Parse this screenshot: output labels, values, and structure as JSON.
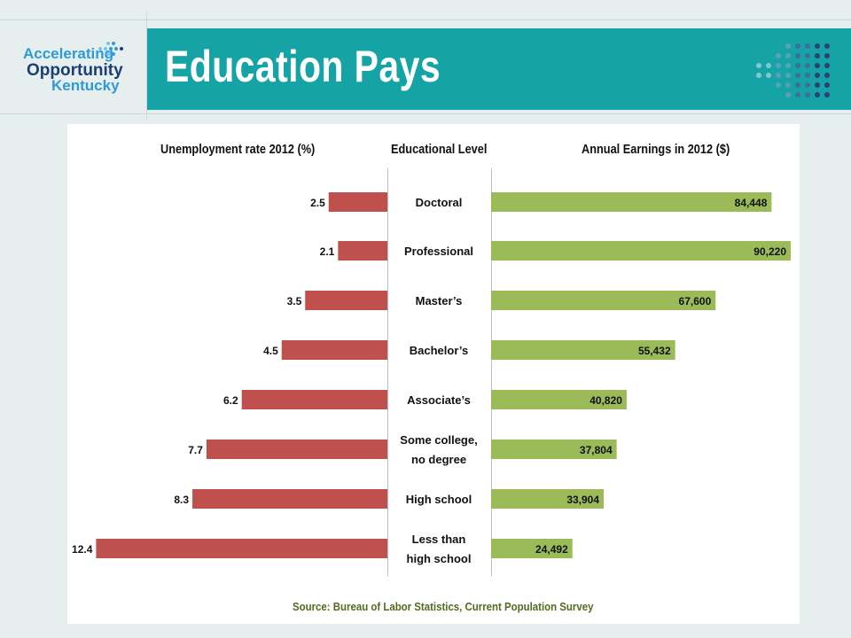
{
  "logo": {
    "line1": "Accelerating",
    "line2": "Opportunity",
    "line3": "Kentucky"
  },
  "slide": {
    "title": "Education Pays"
  },
  "colors": {
    "banner": "#15a3a5",
    "unemployment_bar": "#c0504d",
    "earnings_bar": "#9bbb59",
    "source_text": "#556b1f"
  },
  "chart_data": {
    "type": "bar",
    "orientation": "horizontal",
    "layout": "butterfly",
    "categories": [
      "Doctoral",
      "Professional",
      "Master’s",
      "Bachelor’s",
      "Associate’s",
      "Some college, no degree",
      "High school",
      "Less than high school"
    ],
    "series": [
      {
        "name": "Unemployment rate 2012 (%)",
        "values": [
          2.5,
          2.1,
          3.5,
          4.5,
          6.2,
          7.7,
          8.3,
          12.4
        ],
        "labels": [
          "2.5",
          "2.1",
          "3.5",
          "4.5",
          "6.2",
          "7.7",
          "8.3",
          "12.4"
        ]
      },
      {
        "name": "Annual Earnings in 2012 ($)",
        "values": [
          84448,
          90220,
          67600,
          55432,
          40820,
          37804,
          33904,
          24492
        ],
        "labels": [
          "84,448",
          "90,220",
          "67,600",
          "55,432",
          "40,820",
          "37,804",
          "33,904",
          "24,492"
        ]
      }
    ],
    "headers": {
      "left": "Unemployment rate 2012 (%)",
      "center": "Educational Level",
      "right": "Annual Earnings in 2012 ($)"
    },
    "category_lines": [
      [
        "Doctoral"
      ],
      [
        "Professional"
      ],
      [
        "Master’s"
      ],
      [
        "Bachelor’s"
      ],
      [
        "Associate’s"
      ],
      [
        "Some college,",
        "no degree"
      ],
      [
        "High school"
      ],
      [
        "Less than",
        "high school"
      ]
    ],
    "source": "Source:  Bureau of Labor Statistics, Current Population Survey",
    "grid": false
  }
}
